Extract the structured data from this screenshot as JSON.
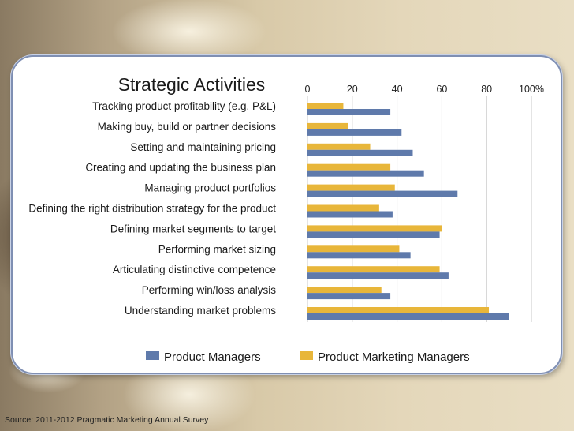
{
  "chart_data": {
    "type": "bar",
    "orientation": "horizontal",
    "title": "Strategic Activities",
    "categories": [
      "Tracking product profitability (e.g. P&L)",
      "Making buy, build or partner decisions",
      "Setting and maintaining pricing",
      "Creating and updating the business plan",
      "Managing product portfolios",
      "Defining the right distribution strategy for the product",
      "Defining market segments to target",
      "Performing market sizing",
      "Articulating distinctive competence",
      "Performing win/loss analysis",
      "Understanding market problems"
    ],
    "series": [
      {
        "name": "Product Managers",
        "color": "#5f7aab",
        "values": [
          37,
          42,
          47,
          52,
          67,
          38,
          59,
          46,
          63,
          37,
          90
        ]
      },
      {
        "name": "Product Marketing Managers",
        "color": "#e8b63a",
        "values": [
          16,
          18,
          28,
          37,
          39,
          32,
          60,
          41,
          59,
          33,
          81
        ]
      }
    ],
    "xlim": [
      0,
      100
    ],
    "ticks": [
      "0",
      "20",
      "40",
      "60",
      "80",
      "100%"
    ],
    "grid": true,
    "legend": "bottom"
  },
  "footer": {
    "source": "Source: 2011-2012 Pragmatic Marketing Annual Survey"
  }
}
